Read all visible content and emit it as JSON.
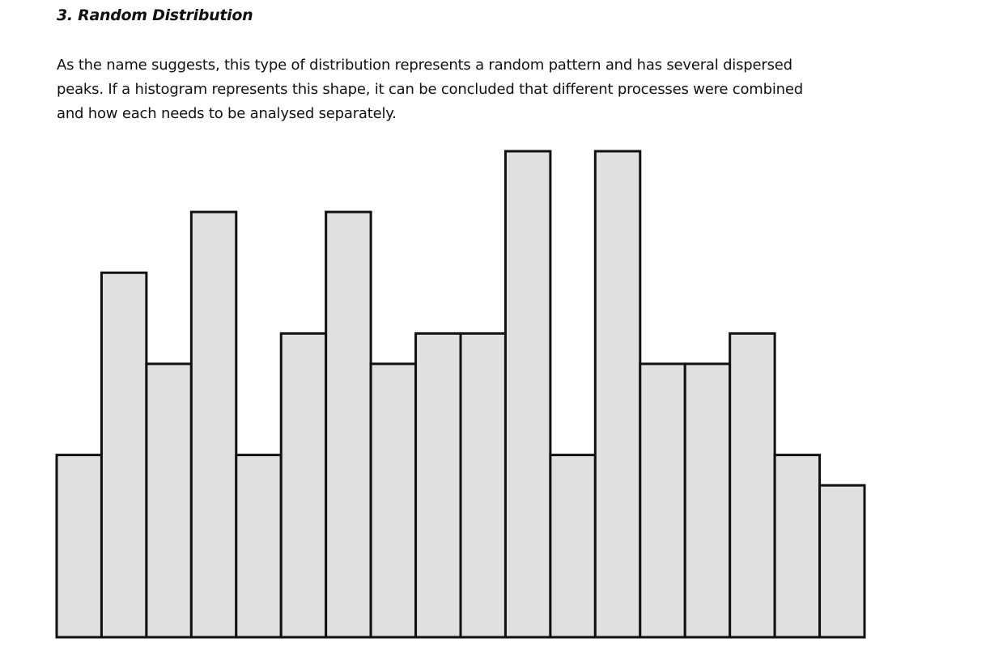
{
  "heading": "3. Random Distribution",
  "paragraph": "As the name suggests, this type of distribution represents a random pattern and has several dispersed peaks. If a histogram represents this shape, it can be concluded that different processes were combined and how each needs to be analysed separately.",
  "chart_data": {
    "type": "bar",
    "categories": [
      null,
      null,
      null,
      null,
      null,
      null,
      null,
      null,
      null,
      null,
      null,
      null,
      null,
      null,
      null,
      null,
      null,
      null
    ],
    "values": [
      6,
      12,
      9,
      14,
      6,
      10,
      14,
      9,
      10,
      10,
      16,
      6,
      16,
      9,
      9,
      10,
      6,
      5
    ],
    "color": "#e0e0e0",
    "ylim": [
      0,
      16
    ]
  }
}
